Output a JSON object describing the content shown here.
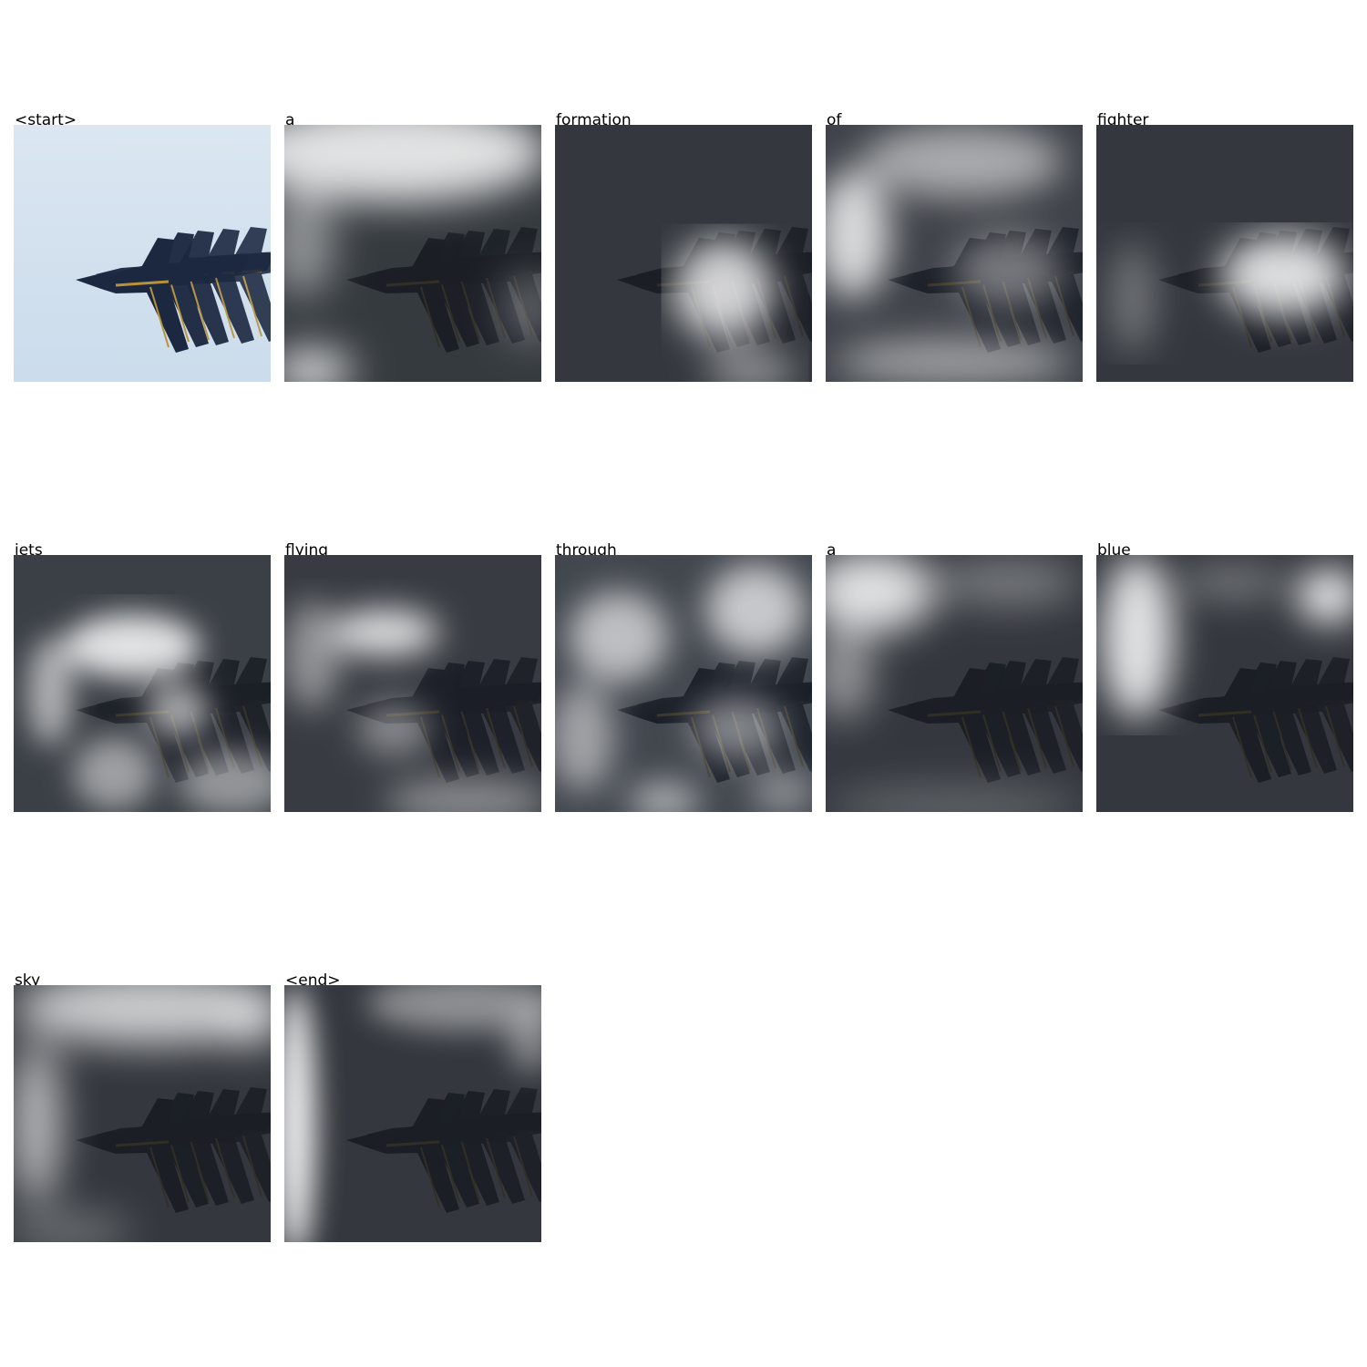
{
  "caption_tokens": [
    {
      "word": "<start>",
      "attention": "none"
    },
    {
      "word": "a",
      "attention": "sky-around-formation"
    },
    {
      "word": "formation",
      "attention": "center-of-formation"
    },
    {
      "word": "of",
      "attention": "diffuse-background"
    },
    {
      "word": "fighter",
      "attention": "jet-cluster"
    },
    {
      "word": "jets",
      "attention": "scattered-around-jets"
    },
    {
      "word": "flying",
      "attention": "scattered-upper-left"
    },
    {
      "word": "through",
      "attention": "scattered-background"
    },
    {
      "word": "a",
      "attention": "top-left-sky"
    },
    {
      "word": "blue",
      "attention": "top-left-and-top-right-sky"
    },
    {
      "word": "sky",
      "attention": "top-sky-and-left-edge"
    },
    {
      "word": "<end>",
      "attention": "left-edge-strip"
    }
  ],
  "colors": {
    "sky_light": "#dbe6f1",
    "sky_blue": "#cbdcec",
    "jet_navy": "#1c2840",
    "jet_gold": "#b89236",
    "overlay_dark": "#1b1d21"
  }
}
